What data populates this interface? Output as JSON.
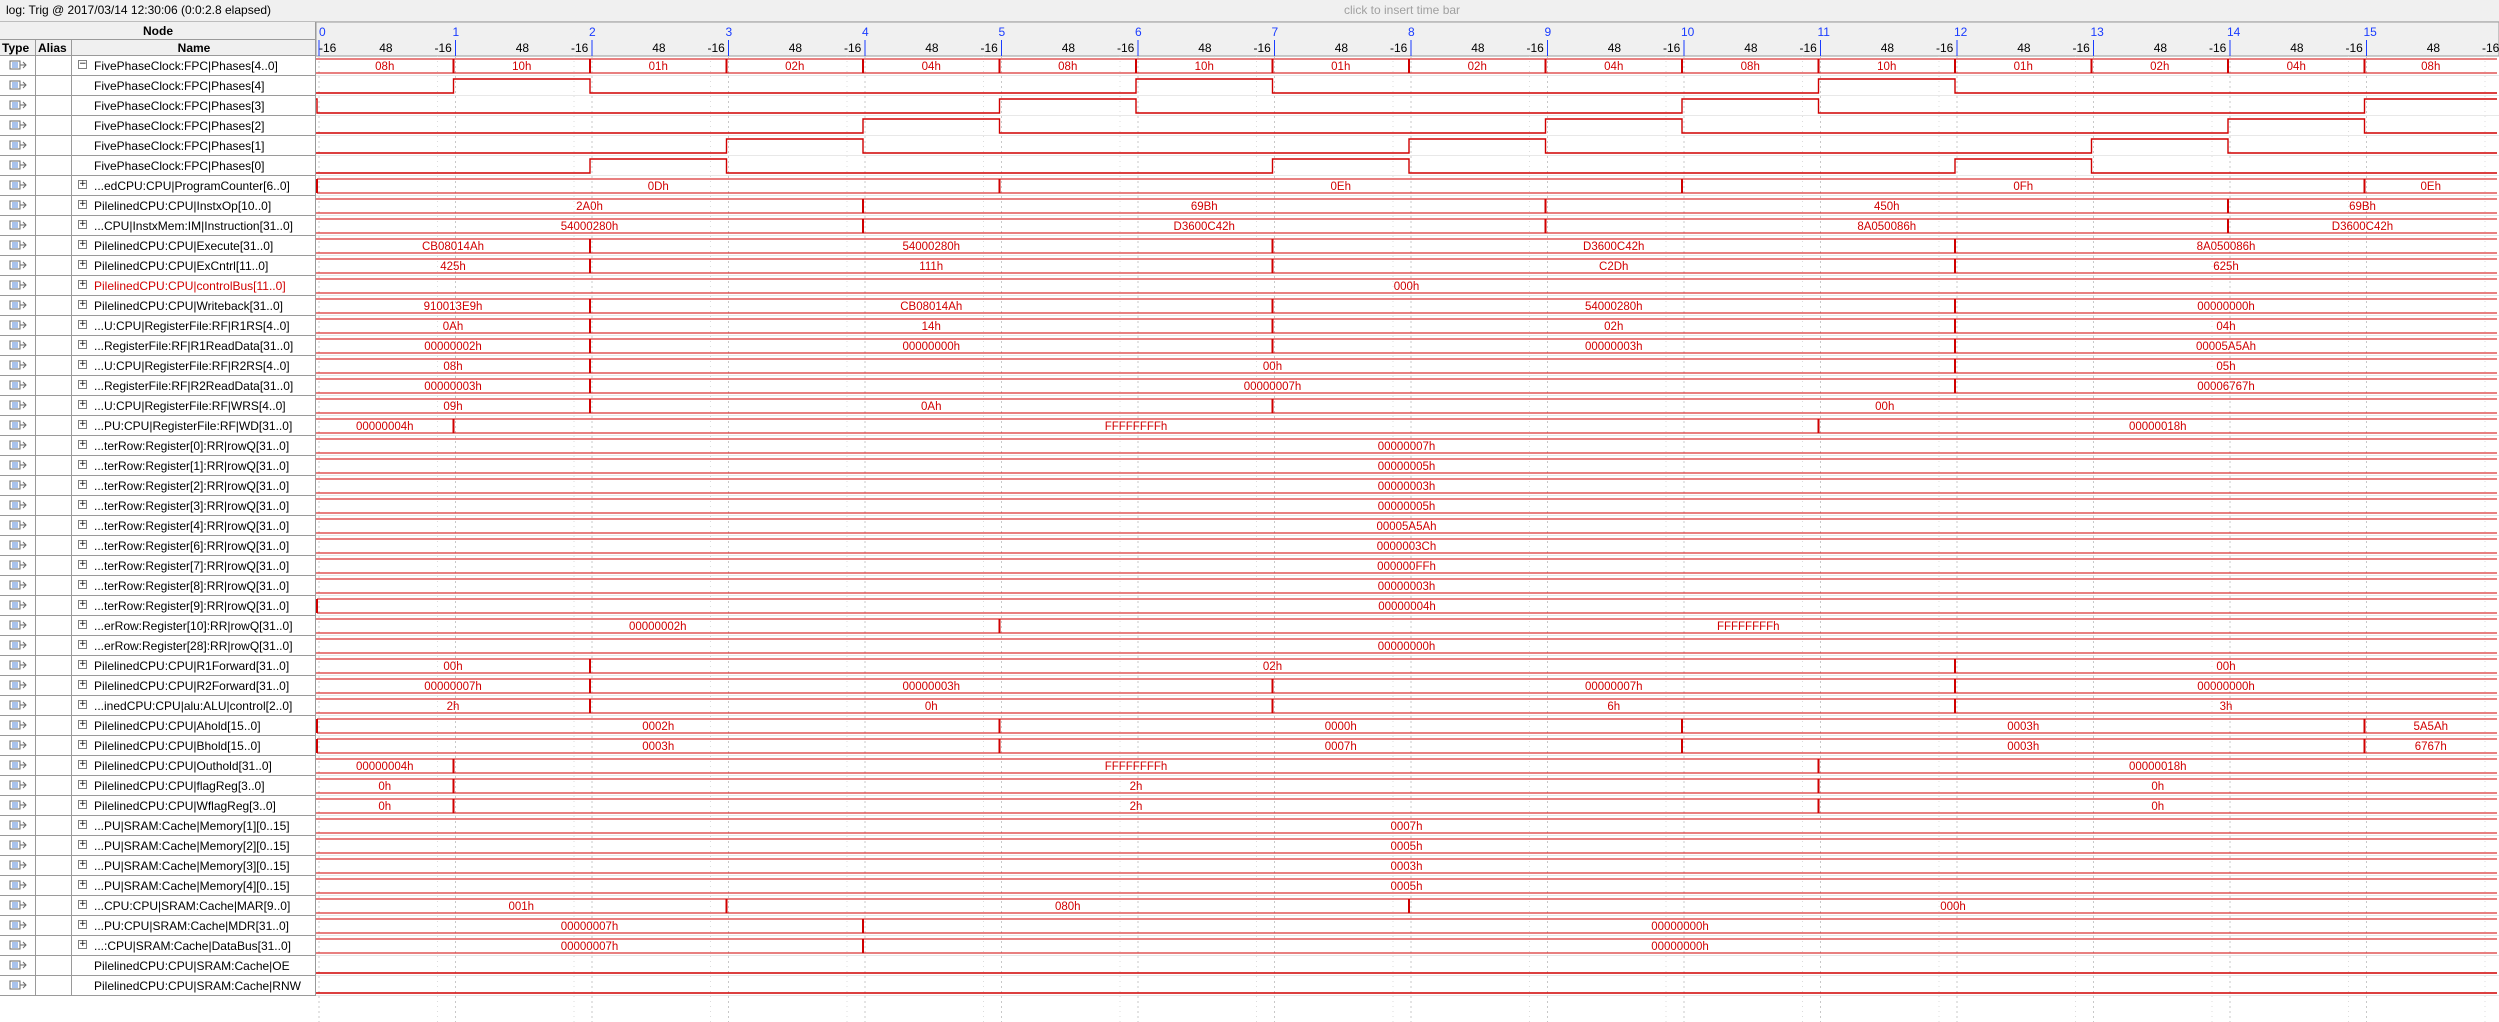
{
  "log_label": "log: Trig @ 2017/03/14 12:30:06 (0:0:2.8 elapsed)",
  "insert_hint": "click to insert time bar",
  "headers": {
    "node": "Node",
    "type": "Type",
    "alias": "Alias",
    "name": "Name"
  },
  "timeline": {
    "major": [
      "0",
      "1",
      "2",
      "3",
      "4",
      "5",
      "6",
      "7",
      "8",
      "9",
      "10",
      "11",
      "12",
      "13",
      "14",
      "15",
      "16"
    ],
    "minor_neg": "-16",
    "minor_mid": "48"
  },
  "colors": {
    "wave": "#d00000",
    "grid": "#c8c8c8",
    "header_bg": "#f0f0f0",
    "time_label": "#1a3cff"
  },
  "signals": [
    {
      "name": "FivePhaseClock:FPC|Phases[4..0]",
      "expand": "−",
      "indent": 0,
      "icon": "output-pin-icon",
      "kind": "bus",
      "segs": [
        [
          null,
          "08h"
        ],
        [
          1,
          "10h"
        ],
        [
          2,
          "01h"
        ],
        [
          3,
          "02h"
        ],
        [
          4,
          "04h"
        ],
        [
          5,
          "08h"
        ],
        [
          6,
          "10h"
        ],
        [
          7,
          "01h"
        ],
        [
          8,
          "02h"
        ],
        [
          9,
          "04h"
        ],
        [
          10,
          "08h"
        ],
        [
          11,
          "10h"
        ],
        [
          12,
          "01h"
        ],
        [
          13,
          "02h"
        ],
        [
          14,
          "04h"
        ],
        [
          15,
          "08h"
        ]
      ]
    },
    {
      "name": "FivePhaseClock:FPC|Phases[4]",
      "indent": 1,
      "icon": "output-pin-icon",
      "kind": "bit",
      "level": 0,
      "edges": [
        1,
        2,
        6,
        7,
        11,
        12
      ]
    },
    {
      "name": "FivePhaseClock:FPC|Phases[3]",
      "indent": 1,
      "icon": "output-pin-icon",
      "kind": "bit",
      "level": 1,
      "edges": [
        0,
        5,
        6,
        10,
        11,
        15
      ]
    },
    {
      "name": "FivePhaseClock:FPC|Phases[2]",
      "indent": 1,
      "icon": "output-pin-icon",
      "kind": "bit",
      "level": 0,
      "edges": [
        4,
        5,
        9,
        10,
        14,
        15
      ]
    },
    {
      "name": "FivePhaseClock:FPC|Phases[1]",
      "indent": 1,
      "icon": "output-pin-icon",
      "kind": "bit",
      "level": 0,
      "edges": [
        3,
        4,
        8,
        9,
        13,
        14
      ]
    },
    {
      "name": "FivePhaseClock:FPC|Phases[0]",
      "indent": 1,
      "icon": "output-pin-icon",
      "kind": "bit",
      "level": 0,
      "edges": [
        2,
        3,
        7,
        8,
        12,
        13
      ]
    },
    {
      "name": "...edCPU:CPU|ProgramCounter[6..0]",
      "expand": "+",
      "indent": 0,
      "icon": "output-pin-icon",
      "kind": "bus",
      "segs": [
        [
          0,
          "0Dh"
        ],
        [
          5,
          "0Eh"
        ],
        [
          10,
          "0Fh"
        ],
        [
          15,
          "0Eh"
        ]
      ]
    },
    {
      "name": "PilelinedCPU:CPU|InstxOp[10..0]",
      "expand": "+",
      "indent": 0,
      "icon": "output-pin-icon",
      "kind": "bus",
      "segs": [
        [
          null,
          "2A0h"
        ],
        [
          4,
          "69Bh"
        ],
        [
          9,
          "450h"
        ],
        [
          14,
          "69Bh"
        ]
      ]
    },
    {
      "name": "...CPU|InstxMem:IM|Instruction[31..0]",
      "expand": "+",
      "indent": 0,
      "icon": "output-pin-icon",
      "kind": "bus",
      "segs": [
        [
          null,
          "54000280h"
        ],
        [
          4,
          "D3600C42h"
        ],
        [
          9,
          "8A050086h"
        ],
        [
          14,
          "D3600C42h"
        ]
      ]
    },
    {
      "name": "PilelinedCPU:CPU|Execute[31..0]",
      "expand": "+",
      "indent": 0,
      "icon": "output-pin-icon",
      "kind": "bus",
      "segs": [
        [
          null,
          "CB08014Ah"
        ],
        [
          2,
          "54000280h"
        ],
        [
          7,
          "D3600C42h"
        ],
        [
          12,
          "8A050086h"
        ]
      ]
    },
    {
      "name": "PilelinedCPU:CPU|ExCntrl[11..0]",
      "expand": "+",
      "indent": 0,
      "icon": "output-pin-icon",
      "kind": "bus",
      "segs": [
        [
          null,
          "425h"
        ],
        [
          2,
          "111h"
        ],
        [
          7,
          "C2Dh"
        ],
        [
          12,
          "625h"
        ]
      ]
    },
    {
      "name": "PilelinedCPU:CPU|controlBus[11..0]",
      "expand": "+",
      "indent": 0,
      "icon": "output-pin-icon",
      "red": true,
      "kind": "bus",
      "segs": [
        [
          null,
          "000h"
        ]
      ]
    },
    {
      "name": "PilelinedCPU:CPU|Writeback[31..0]",
      "expand": "+",
      "indent": 0,
      "icon": "output-pin-icon",
      "kind": "bus",
      "segs": [
        [
          null,
          "910013E9h"
        ],
        [
          2,
          "CB08014Ah"
        ],
        [
          7,
          "54000280h"
        ],
        [
          12,
          "00000000h"
        ]
      ]
    },
    {
      "name": "...U:CPU|RegisterFile:RF|R1RS[4..0]",
      "expand": "+",
      "indent": 0,
      "icon": "output-pin-icon",
      "kind": "bus",
      "segs": [
        [
          null,
          "0Ah"
        ],
        [
          2,
          "14h"
        ],
        [
          7,
          "02h"
        ],
        [
          12,
          "04h"
        ]
      ]
    },
    {
      "name": "...RegisterFile:RF|R1ReadData[31..0]",
      "expand": "+",
      "indent": 0,
      "icon": "output-pin-icon",
      "kind": "bus",
      "segs": [
        [
          null,
          "00000002h"
        ],
        [
          2,
          "00000000h"
        ],
        [
          7,
          "00000003h"
        ],
        [
          12,
          "00005A5Ah"
        ]
      ]
    },
    {
      "name": "...U:CPU|RegisterFile:RF|R2RS[4..0]",
      "expand": "+",
      "indent": 0,
      "icon": "output-pin-icon",
      "kind": "bus",
      "segs": [
        [
          null,
          "08h"
        ],
        [
          2,
          "00h"
        ],
        [
          12,
          "05h"
        ]
      ]
    },
    {
      "name": "...RegisterFile:RF|R2ReadData[31..0]",
      "expand": "+",
      "indent": 0,
      "icon": "output-pin-icon",
      "kind": "bus",
      "segs": [
        [
          null,
          "00000003h"
        ],
        [
          2,
          "00000007h"
        ],
        [
          12,
          "00006767h"
        ]
      ]
    },
    {
      "name": "...U:CPU|RegisterFile:RF|WRS[4..0]",
      "expand": "+",
      "indent": 0,
      "icon": "output-pin-icon",
      "kind": "bus",
      "segs": [
        [
          null,
          "09h"
        ],
        [
          2,
          "0Ah"
        ],
        [
          7,
          "00h"
        ]
      ]
    },
    {
      "name": "...PU:CPU|RegisterFile:RF|WD[31..0]",
      "expand": "+",
      "indent": 0,
      "icon": "output-pin-icon",
      "kind": "bus",
      "segs": [
        [
          null,
          "00000004h"
        ],
        [
          1,
          "FFFFFFFFh"
        ],
        [
          11,
          "00000018h"
        ]
      ]
    },
    {
      "name": "...terRow:Register[0]:RR|rowQ[31..0]",
      "expand": "+",
      "indent": 0,
      "icon": "output-pin-icon",
      "kind": "bus",
      "segs": [
        [
          null,
          "00000007h"
        ]
      ]
    },
    {
      "name": "...terRow:Register[1]:RR|rowQ[31..0]",
      "expand": "+",
      "indent": 0,
      "icon": "output-pin-icon",
      "kind": "bus",
      "segs": [
        [
          null,
          "00000005h"
        ]
      ]
    },
    {
      "name": "...terRow:Register[2]:RR|rowQ[31..0]",
      "expand": "+",
      "indent": 0,
      "icon": "output-pin-icon",
      "kind": "bus",
      "segs": [
        [
          null,
          "00000003h"
        ]
      ]
    },
    {
      "name": "...terRow:Register[3]:RR|rowQ[31..0]",
      "expand": "+",
      "indent": 0,
      "icon": "output-pin-icon",
      "kind": "bus",
      "segs": [
        [
          null,
          "00000005h"
        ]
      ]
    },
    {
      "name": "...terRow:Register[4]:RR|rowQ[31..0]",
      "expand": "+",
      "indent": 0,
      "icon": "output-pin-icon",
      "kind": "bus",
      "segs": [
        [
          null,
          "00005A5Ah"
        ]
      ]
    },
    {
      "name": "...terRow:Register[6]:RR|rowQ[31..0]",
      "expand": "+",
      "indent": 0,
      "icon": "output-pin-icon",
      "kind": "bus",
      "segs": [
        [
          null,
          "0000003Ch"
        ]
      ]
    },
    {
      "name": "...terRow:Register[7]:RR|rowQ[31..0]",
      "expand": "+",
      "indent": 0,
      "icon": "output-pin-icon",
      "kind": "bus",
      "segs": [
        [
          null,
          "000000FFh"
        ]
      ]
    },
    {
      "name": "...terRow:Register[8]:RR|rowQ[31..0]",
      "expand": "+",
      "indent": 0,
      "icon": "output-pin-icon",
      "kind": "bus",
      "segs": [
        [
          null,
          "00000003h"
        ]
      ]
    },
    {
      "name": "...terRow:Register[9]:RR|rowQ[31..0]",
      "expand": "+",
      "indent": 0,
      "icon": "output-pin-icon",
      "kind": "bus",
      "segs": [
        [
          0,
          "00000004h"
        ]
      ]
    },
    {
      "name": "...erRow:Register[10]:RR|rowQ[31..0]",
      "expand": "+",
      "indent": 0,
      "icon": "output-pin-icon",
      "kind": "bus",
      "segs": [
        [
          null,
          "00000002h"
        ],
        [
          5,
          "FFFFFFFFh"
        ]
      ]
    },
    {
      "name": "...erRow:Register[28]:RR|rowQ[31..0]",
      "expand": "+",
      "indent": 0,
      "icon": "output-pin-icon",
      "kind": "bus",
      "segs": [
        [
          null,
          "00000000h"
        ]
      ]
    },
    {
      "name": "PilelinedCPU:CPU|R1Forward[31..0]",
      "expand": "+",
      "indent": 0,
      "icon": "output-pin-icon",
      "kind": "bus",
      "segs": [
        [
          null,
          "00h"
        ],
        [
          2,
          "02h"
        ],
        [
          12,
          "00h"
        ]
      ]
    },
    {
      "name": "PilelinedCPU:CPU|R2Forward[31..0]",
      "expand": "+",
      "indent": 0,
      "icon": "output-pin-icon",
      "kind": "bus",
      "segs": [
        [
          null,
          "00000007h"
        ],
        [
          2,
          "00000003h"
        ],
        [
          7,
          "00000007h"
        ],
        [
          12,
          "00000000h"
        ]
      ]
    },
    {
      "name": "...inedCPU:CPU|alu:ALU|control[2..0]",
      "expand": "+",
      "indent": 0,
      "icon": "output-pin-icon",
      "kind": "bus",
      "segs": [
        [
          null,
          "2h"
        ],
        [
          2,
          "0h"
        ],
        [
          7,
          "6h"
        ],
        [
          12,
          "3h"
        ]
      ]
    },
    {
      "name": "PilelinedCPU:CPU|Ahold[15..0]",
      "expand": "+",
      "indent": 0,
      "icon": "output-pin-icon",
      "kind": "bus",
      "segs": [
        [
          0,
          "0002h"
        ],
        [
          5,
          "0000h"
        ],
        [
          10,
          "0003h"
        ],
        [
          15,
          "5A5Ah"
        ]
      ]
    },
    {
      "name": "PilelinedCPU:CPU|Bhold[15..0]",
      "expand": "+",
      "indent": 0,
      "icon": "output-pin-icon",
      "kind": "bus",
      "segs": [
        [
          0,
          "0003h"
        ],
        [
          5,
          "0007h"
        ],
        [
          10,
          "0003h"
        ],
        [
          15,
          "6767h"
        ]
      ]
    },
    {
      "name": "PilelinedCPU:CPU|Outhold[31..0]",
      "expand": "+",
      "indent": 0,
      "icon": "output-pin-icon",
      "kind": "bus",
      "segs": [
        [
          null,
          "00000004h"
        ],
        [
          1,
          "FFFFFFFFh"
        ],
        [
          11,
          "00000018h"
        ]
      ]
    },
    {
      "name": "PilelinedCPU:CPU|flagReg[3..0]",
      "expand": "+",
      "indent": 0,
      "icon": "output-pin-icon",
      "kind": "bus",
      "segs": [
        [
          null,
          "0h"
        ],
        [
          1,
          "2h"
        ],
        [
          11,
          "0h"
        ]
      ]
    },
    {
      "name": "PilelinedCPU:CPU|WflagReg[3..0]",
      "expand": "+",
      "indent": 0,
      "icon": "output-pin-icon",
      "kind": "bus",
      "segs": [
        [
          null,
          "0h"
        ],
        [
          1,
          "2h"
        ],
        [
          11,
          "0h"
        ]
      ]
    },
    {
      "name": "...PU|SRAM:Cache|Memory[1][0..15]",
      "expand": "+",
      "indent": 0,
      "icon": "output-pin-icon",
      "kind": "bus",
      "segs": [
        [
          null,
          "0007h"
        ]
      ]
    },
    {
      "name": "...PU|SRAM:Cache|Memory[2][0..15]",
      "expand": "+",
      "indent": 0,
      "icon": "output-pin-icon",
      "kind": "bus",
      "segs": [
        [
          null,
          "0005h"
        ]
      ]
    },
    {
      "name": "...PU|SRAM:Cache|Memory[3][0..15]",
      "expand": "+",
      "indent": 0,
      "icon": "output-pin-icon",
      "kind": "bus",
      "segs": [
        [
          null,
          "0003h"
        ]
      ]
    },
    {
      "name": "...PU|SRAM:Cache|Memory[4][0..15]",
      "expand": "+",
      "indent": 0,
      "icon": "output-pin-icon",
      "kind": "bus",
      "segs": [
        [
          null,
          "0005h"
        ]
      ]
    },
    {
      "name": "...CPU:CPU|SRAM:Cache|MAR[9..0]",
      "expand": "+",
      "indent": 0,
      "icon": "output-pin-icon",
      "kind": "bus",
      "segs": [
        [
          null,
          "001h"
        ],
        [
          3,
          "080h"
        ],
        [
          8,
          "000h"
        ]
      ]
    },
    {
      "name": "...PU:CPU|SRAM:Cache|MDR[31..0]",
      "expand": "+",
      "indent": 0,
      "icon": "output-pin-icon",
      "kind": "bus",
      "segs": [
        [
          null,
          "00000007h"
        ],
        [
          4,
          "00000000h"
        ]
      ]
    },
    {
      "name": "...:CPU|SRAM:Cache|DataBus[31..0]",
      "expand": "+",
      "indent": 0,
      "icon": "output-pin-icon",
      "kind": "bus",
      "segs": [
        [
          null,
          "00000007h"
        ],
        [
          4,
          "00000000h"
        ]
      ]
    },
    {
      "name": "PilelinedCPU:CPU|SRAM:Cache|OE",
      "indent": 0,
      "icon": "output-pin-icon",
      "kind": "bit",
      "level": 0,
      "edges": []
    },
    {
      "name": "PilelinedCPU:CPU|SRAM:Cache|RNW",
      "indent": 0,
      "icon": "output-pin-icon",
      "kind": "bit",
      "level": 0,
      "edges": []
    }
  ]
}
